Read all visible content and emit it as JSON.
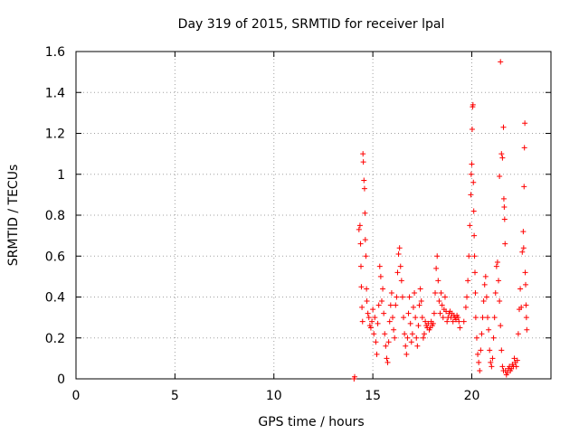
{
  "chart_data": {
    "type": "scatter",
    "title": "Day 319 of 2015, SRMTID for receiver lpal",
    "xlabel": "GPS time / hours",
    "ylabel": "SRMTID / TECUs",
    "xlim": [
      0,
      24
    ],
    "ylim": [
      0,
      1.6
    ],
    "xticks": [
      0,
      5,
      10,
      15,
      20
    ],
    "yticks": [
      0,
      0.2,
      0.4,
      0.6,
      0.8,
      1,
      1.2,
      1.4,
      1.6
    ],
    "xtick_labels": [
      "0",
      "5",
      "10",
      "15",
      "20"
    ],
    "ytick_labels": [
      "0",
      "0.2",
      "0.4",
      "0.6",
      "0.8",
      "1",
      "1.2",
      "1.4",
      "1.6"
    ],
    "grid": true,
    "marker": "+",
    "color": "#ff0000",
    "series": [
      {
        "name": "SRMTID",
        "points": [
          [
            14.05,
            0.0
          ],
          [
            14.08,
            0.01
          ],
          [
            14.3,
            0.73
          ],
          [
            14.35,
            0.75
          ],
          [
            14.38,
            0.66
          ],
          [
            14.4,
            0.55
          ],
          [
            14.42,
            0.45
          ],
          [
            14.45,
            0.35
          ],
          [
            14.48,
            0.28
          ],
          [
            14.5,
            1.1
          ],
          [
            14.52,
            1.06
          ],
          [
            14.55,
            0.97
          ],
          [
            14.58,
            0.93
          ],
          [
            14.6,
            0.81
          ],
          [
            14.62,
            0.68
          ],
          [
            14.65,
            0.6
          ],
          [
            14.68,
            0.44
          ],
          [
            14.7,
            0.38
          ],
          [
            14.75,
            0.32
          ],
          [
            14.8,
            0.3
          ],
          [
            14.85,
            0.26
          ],
          [
            14.9,
            0.25
          ],
          [
            14.95,
            0.28
          ],
          [
            15.0,
            0.34
          ],
          [
            15.05,
            0.22
          ],
          [
            15.1,
            0.3
          ],
          [
            15.15,
            0.18
          ],
          [
            15.2,
            0.12
          ],
          [
            15.25,
            0.27
          ],
          [
            15.3,
            0.36
          ],
          [
            15.35,
            0.55
          ],
          [
            15.4,
            0.5
          ],
          [
            15.45,
            0.38
          ],
          [
            15.5,
            0.44
          ],
          [
            15.55,
            0.32
          ],
          [
            15.6,
            0.22
          ],
          [
            15.65,
            0.16
          ],
          [
            15.7,
            0.1
          ],
          [
            15.75,
            0.08
          ],
          [
            15.8,
            0.18
          ],
          [
            15.85,
            0.28
          ],
          [
            15.9,
            0.36
          ],
          [
            15.95,
            0.42
          ],
          [
            16.0,
            0.3
          ],
          [
            16.05,
            0.24
          ],
          [
            16.1,
            0.2
          ],
          [
            16.15,
            0.36
          ],
          [
            16.2,
            0.4
          ],
          [
            16.25,
            0.52
          ],
          [
            16.3,
            0.61
          ],
          [
            16.35,
            0.64
          ],
          [
            16.4,
            0.55
          ],
          [
            16.45,
            0.48
          ],
          [
            16.5,
            0.4
          ],
          [
            16.55,
            0.3
          ],
          [
            16.6,
            0.22
          ],
          [
            16.65,
            0.16
          ],
          [
            16.7,
            0.12
          ],
          [
            16.75,
            0.2
          ],
          [
            16.8,
            0.32
          ],
          [
            16.85,
            0.4
          ],
          [
            16.9,
            0.27
          ],
          [
            16.95,
            0.18
          ],
          [
            17.0,
            0.22
          ],
          [
            17.05,
            0.35
          ],
          [
            17.1,
            0.42
          ],
          [
            17.15,
            0.3
          ],
          [
            17.2,
            0.2
          ],
          [
            17.25,
            0.16
          ],
          [
            17.3,
            0.26
          ],
          [
            17.35,
            0.36
          ],
          [
            17.4,
            0.44
          ],
          [
            17.45,
            0.38
          ],
          [
            17.5,
            0.3
          ],
          [
            17.55,
            0.2
          ],
          [
            17.6,
            0.22
          ],
          [
            17.65,
            0.28
          ],
          [
            17.7,
            0.26
          ],
          [
            17.75,
            0.25
          ],
          [
            17.8,
            0.27
          ],
          [
            17.85,
            0.24
          ],
          [
            17.9,
            0.25
          ],
          [
            17.95,
            0.28
          ],
          [
            18.0,
            0.26
          ],
          [
            18.05,
            0.27
          ],
          [
            18.1,
            0.32
          ],
          [
            18.15,
            0.42
          ],
          [
            18.2,
            0.54
          ],
          [
            18.25,
            0.6
          ],
          [
            18.3,
            0.48
          ],
          [
            18.35,
            0.38
          ],
          [
            18.4,
            0.32
          ],
          [
            18.45,
            0.42
          ],
          [
            18.5,
            0.36
          ],
          [
            18.55,
            0.3
          ],
          [
            18.6,
            0.34
          ],
          [
            18.65,
            0.4
          ],
          [
            18.7,
            0.33
          ],
          [
            18.75,
            0.28
          ],
          [
            18.8,
            0.3
          ],
          [
            18.85,
            0.32
          ],
          [
            18.9,
            0.33
          ],
          [
            18.95,
            0.3
          ],
          [
            19.0,
            0.32
          ],
          [
            19.05,
            0.28
          ],
          [
            19.1,
            0.31
          ],
          [
            19.15,
            0.3
          ],
          [
            19.2,
            0.29
          ],
          [
            19.25,
            0.31
          ],
          [
            19.3,
            0.3
          ],
          [
            19.35,
            0.28
          ],
          [
            19.4,
            0.25
          ],
          [
            19.6,
            0.28
          ],
          [
            19.7,
            0.35
          ],
          [
            19.75,
            0.4
          ],
          [
            19.8,
            0.48
          ],
          [
            19.85,
            0.6
          ],
          [
            19.9,
            0.75
          ],
          [
            19.95,
            0.9
          ],
          [
            19.97,
            1.0
          ],
          [
            20.0,
            1.05
          ],
          [
            20.02,
            1.22
          ],
          [
            20.04,
            1.33
          ],
          [
            20.06,
            1.34
          ],
          [
            20.08,
            0.96
          ],
          [
            20.1,
            0.82
          ],
          [
            20.12,
            0.7
          ],
          [
            20.14,
            0.6
          ],
          [
            20.16,
            0.52
          ],
          [
            20.18,
            0.42
          ],
          [
            20.2,
            0.3
          ],
          [
            20.25,
            0.2
          ],
          [
            20.3,
            0.12
          ],
          [
            20.35,
            0.08
          ],
          [
            20.4,
            0.04
          ],
          [
            20.45,
            0.14
          ],
          [
            20.5,
            0.22
          ],
          [
            20.55,
            0.3
          ],
          [
            20.6,
            0.38
          ],
          [
            20.65,
            0.46
          ],
          [
            20.7,
            0.5
          ],
          [
            20.75,
            0.4
          ],
          [
            20.8,
            0.3
          ],
          [
            20.85,
            0.24
          ],
          [
            20.9,
            0.14
          ],
          [
            20.95,
            0.08
          ],
          [
            21.0,
            0.06
          ],
          [
            21.05,
            0.1
          ],
          [
            21.1,
            0.2
          ],
          [
            21.15,
            0.3
          ],
          [
            21.2,
            0.42
          ],
          [
            21.25,
            0.55
          ],
          [
            21.3,
            0.57
          ],
          [
            21.35,
            0.48
          ],
          [
            21.4,
            0.38
          ],
          [
            21.45,
            0.26
          ],
          [
            21.5,
            0.14
          ],
          [
            21.55,
            0.06
          ],
          [
            21.6,
            0.04
          ],
          [
            21.4,
            0.99
          ],
          [
            21.45,
            1.55
          ],
          [
            21.5,
            1.1
          ],
          [
            21.55,
            1.08
          ],
          [
            21.6,
            1.23
          ],
          [
            21.62,
            0.88
          ],
          [
            21.64,
            0.84
          ],
          [
            21.66,
            0.78
          ],
          [
            21.68,
            0.66
          ],
          [
            21.7,
            0.04
          ],
          [
            21.75,
            0.02
          ],
          [
            21.8,
            0.03
          ],
          [
            21.85,
            0.05
          ],
          [
            21.9,
            0.06
          ],
          [
            21.95,
            0.04
          ],
          [
            22.0,
            0.05
          ],
          [
            22.05,
            0.07
          ],
          [
            22.1,
            0.06
          ],
          [
            22.15,
            0.1
          ],
          [
            22.2,
            0.08
          ],
          [
            22.25,
            0.06
          ],
          [
            22.3,
            0.09
          ],
          [
            22.35,
            0.22
          ],
          [
            22.4,
            0.34
          ],
          [
            22.45,
            0.44
          ],
          [
            22.5,
            0.35
          ],
          [
            22.55,
            0.62
          ],
          [
            22.6,
            0.72
          ],
          [
            22.62,
            0.64
          ],
          [
            22.64,
            0.94
          ],
          [
            22.66,
            1.13
          ],
          [
            22.68,
            1.25
          ],
          [
            22.7,
            0.52
          ],
          [
            22.72,
            0.46
          ],
          [
            22.74,
            0.36
          ],
          [
            22.76,
            0.3
          ],
          [
            22.78,
            0.24
          ]
        ]
      }
    ]
  }
}
